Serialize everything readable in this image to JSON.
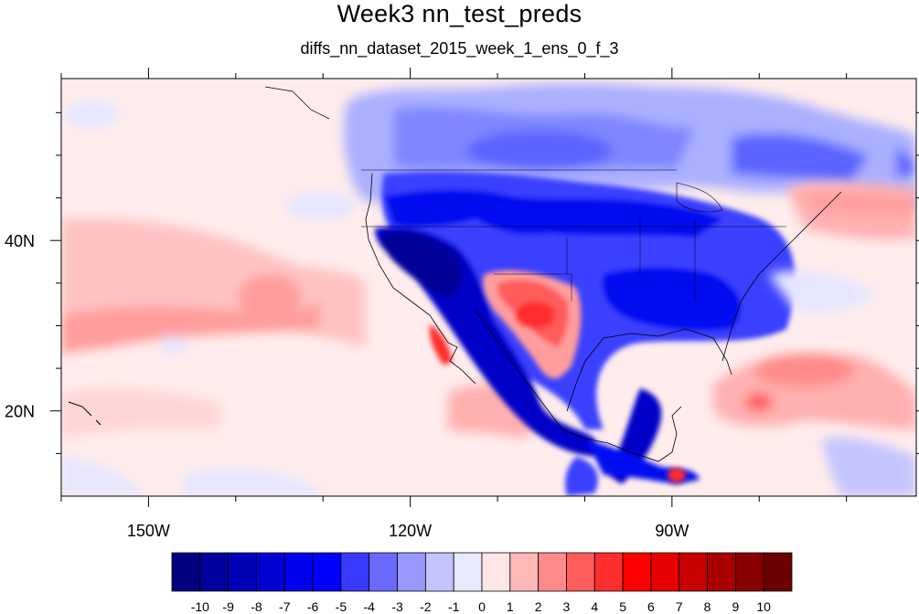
{
  "title": "Week3 nn_test_preds",
  "subtitle": "diffs_nn_dataset_2015_week_1_ens_0_f_3",
  "map": {
    "projection": "cylindrical-equidistant",
    "lon_range": [
      -160,
      -62
    ],
    "lat_range": [
      10,
      59
    ],
    "lon_ticks": [
      {
        "value": -150,
        "label": "150W"
      },
      {
        "value": -120,
        "label": "120W"
      },
      {
        "value": -90,
        "label": "90W"
      }
    ],
    "lat_ticks": [
      {
        "value": 40,
        "label": "40N"
      },
      {
        "value": 20,
        "label": "20N"
      }
    ]
  },
  "colorbar": {
    "labels": [
      "-10",
      "-9",
      "-8",
      "-7",
      "-6",
      "-5",
      "-4",
      "-3",
      "-2",
      "-1",
      "0",
      "1",
      "2",
      "3",
      "4",
      "5",
      "6",
      "7",
      "8",
      "9",
      "10"
    ],
    "colors": [
      "#000080",
      "#00009c",
      "#0000b8",
      "#0000d2",
      "#0000ee",
      "#0000ff",
      "#3a3aff",
      "#6a6aff",
      "#9898ff",
      "#c4c4ff",
      "#e8e8ff",
      "#ffe6e6",
      "#ffb8b8",
      "#ff8a8a",
      "#ff5c5c",
      "#ff2e2e",
      "#ff0000",
      "#e60000",
      "#c80000",
      "#a80000",
      "#880000",
      "#6a0000"
    ]
  }
}
